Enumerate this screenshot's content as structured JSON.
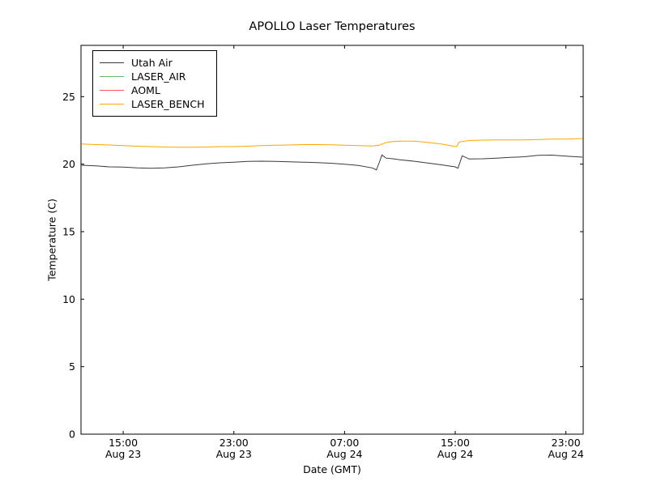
{
  "chart_data": {
    "type": "line",
    "title": "APOLLO Laser Temperatures",
    "xlabel": "Date (GMT)",
    "ylabel": "Temperature (C)",
    "x_unit": "hours since Aug 23 12:00 GMT",
    "xlim": [
      -0.05,
      36.25
    ],
    "ylim": [
      0,
      28.8
    ],
    "yticks": [
      0,
      5,
      10,
      15,
      20,
      25
    ],
    "xticks": [
      {
        "x": 3,
        "time": "15:00",
        "date": "Aug 23"
      },
      {
        "x": 11,
        "time": "23:00",
        "date": "Aug 23"
      },
      {
        "x": 19,
        "time": "07:00",
        "date": "Aug 24"
      },
      {
        "x": 27,
        "time": "15:00",
        "date": "Aug 24"
      },
      {
        "x": 35,
        "time": "23:00",
        "date": "Aug 24"
      }
    ],
    "grid": false,
    "legend_position": "upper left",
    "series": [
      {
        "name": "Utah Air",
        "color": "#3a3a3a",
        "points": [
          [
            0,
            19.92
          ],
          [
            1,
            19.87
          ],
          [
            2,
            19.8
          ],
          [
            3,
            19.78
          ],
          [
            4,
            19.73
          ],
          [
            5,
            19.7
          ],
          [
            6,
            19.72
          ],
          [
            7,
            19.8
          ],
          [
            8,
            19.92
          ],
          [
            9,
            20.02
          ],
          [
            10,
            20.1
          ],
          [
            11,
            20.15
          ],
          [
            12,
            20.2
          ],
          [
            13,
            20.22
          ],
          [
            14,
            20.2
          ],
          [
            15,
            20.18
          ],
          [
            16,
            20.15
          ],
          [
            17,
            20.12
          ],
          [
            18,
            20.07
          ],
          [
            19,
            20.0
          ],
          [
            20,
            19.9
          ],
          [
            21,
            19.72
          ],
          [
            21.3,
            19.58
          ],
          [
            21.5,
            20.1
          ],
          [
            21.7,
            20.68
          ],
          [
            22,
            20.45
          ],
          [
            22.5,
            20.4
          ],
          [
            23,
            20.33
          ],
          [
            24,
            20.22
          ],
          [
            25,
            20.08
          ],
          [
            26,
            19.95
          ],
          [
            27,
            19.8
          ],
          [
            27.2,
            19.7
          ],
          [
            27.5,
            20.62
          ],
          [
            28,
            20.38
          ],
          [
            29,
            20.4
          ],
          [
            30,
            20.45
          ],
          [
            31,
            20.5
          ],
          [
            32,
            20.55
          ],
          [
            33,
            20.65
          ],
          [
            34,
            20.67
          ],
          [
            35,
            20.6
          ],
          [
            36.2,
            20.52
          ]
        ]
      },
      {
        "name": "LASER_AIR",
        "color": "#66bb66",
        "points": []
      },
      {
        "name": "AOML",
        "color": "#ff5555",
        "points": []
      },
      {
        "name": "LASER_BENCH",
        "color": "#ffa500",
        "points": [
          [
            0,
            21.5
          ],
          [
            1,
            21.45
          ],
          [
            2,
            21.42
          ],
          [
            3,
            21.38
          ],
          [
            4,
            21.33
          ],
          [
            5,
            21.3
          ],
          [
            6,
            21.27
          ],
          [
            7,
            21.25
          ],
          [
            8,
            21.25
          ],
          [
            9,
            21.27
          ],
          [
            10,
            21.3
          ],
          [
            11,
            21.3
          ],
          [
            12,
            21.33
          ],
          [
            13,
            21.37
          ],
          [
            14,
            21.4
          ],
          [
            15,
            21.42
          ],
          [
            16,
            21.45
          ],
          [
            17,
            21.45
          ],
          [
            18,
            21.43
          ],
          [
            19,
            21.4
          ],
          [
            20,
            21.37
          ],
          [
            21,
            21.35
          ],
          [
            21.5,
            21.4
          ],
          [
            22,
            21.6
          ],
          [
            22.5,
            21.68
          ],
          [
            23,
            21.7
          ],
          [
            24,
            21.7
          ],
          [
            25,
            21.62
          ],
          [
            26,
            21.5
          ],
          [
            26.8,
            21.35
          ],
          [
            27.1,
            21.3
          ],
          [
            27.3,
            21.65
          ],
          [
            28,
            21.75
          ],
          [
            29,
            21.78
          ],
          [
            30,
            21.8
          ],
          [
            31,
            21.8
          ],
          [
            32,
            21.8
          ],
          [
            33,
            21.83
          ],
          [
            34,
            21.85
          ],
          [
            35,
            21.85
          ],
          [
            36.2,
            21.9
          ]
        ]
      }
    ]
  }
}
